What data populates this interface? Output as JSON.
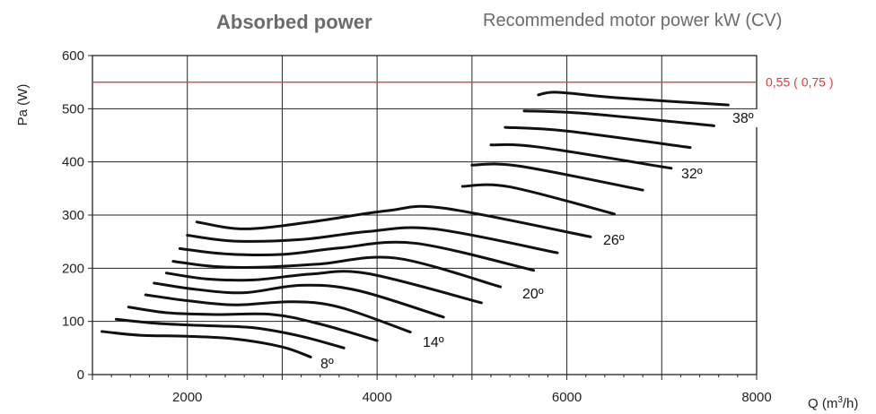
{
  "title": "Absorbed power",
  "subtitle": "Recommended motor power kW (CV)",
  "chart_data": {
    "type": "line",
    "title": "Absorbed power",
    "xlabel": "Q (m3/h)",
    "ylabel": "Pa (W)",
    "xlim": [
      1000,
      8000
    ],
    "ylim": [
      0,
      600
    ],
    "xticks": [
      2000,
      4000,
      6000,
      8000
    ],
    "yticks": [
      0,
      100,
      200,
      300,
      400,
      500,
      600
    ],
    "grid": true,
    "reference_line": {
      "value": 550,
      "label": "0,55 ( 0,75 )",
      "color": "#e23b3b"
    },
    "series": [
      {
        "name": "8º",
        "points": [
          [
            1100,
            81
          ],
          [
            1500,
            74
          ],
          [
            2000,
            72
          ],
          [
            2500,
            67
          ],
          [
            3000,
            52
          ],
          [
            3300,
            33
          ]
        ]
      },
      {
        "name": "",
        "points": [
          [
            1250,
            104
          ],
          [
            1700,
            96
          ],
          [
            2200,
            92
          ],
          [
            2700,
            88
          ],
          [
            3200,
            72
          ],
          [
            3650,
            50
          ]
        ]
      },
      {
        "name": "",
        "points": [
          [
            1380,
            127
          ],
          [
            1800,
            116
          ],
          [
            2300,
            113
          ],
          [
            2900,
            113
          ],
          [
            3400,
            95
          ],
          [
            4000,
            64
          ]
        ]
      },
      {
        "name": "14º",
        "points": [
          [
            1560,
            150
          ],
          [
            2000,
            139
          ],
          [
            2500,
            131
          ],
          [
            3100,
            137
          ],
          [
            3600,
            127
          ],
          [
            4350,
            80
          ]
        ]
      },
      {
        "name": "",
        "points": [
          [
            1650,
            172
          ],
          [
            2100,
            160
          ],
          [
            2600,
            154
          ],
          [
            3200,
            168
          ],
          [
            3800,
            158
          ],
          [
            4700,
            108
          ]
        ]
      },
      {
        "name": "",
        "points": [
          [
            1780,
            191
          ],
          [
            2200,
            180
          ],
          [
            2700,
            178
          ],
          [
            3300,
            189
          ],
          [
            3900,
            190
          ],
          [
            5100,
            135
          ]
        ]
      },
      {
        "name": "20º",
        "points": [
          [
            1850,
            213
          ],
          [
            2300,
            203
          ],
          [
            2800,
            202
          ],
          [
            3400,
            208
          ],
          [
            4200,
            219
          ],
          [
            5300,
            165
          ]
        ]
      },
      {
        "name": "",
        "points": [
          [
            1920,
            237
          ],
          [
            2400,
            227
          ],
          [
            3000,
            226
          ],
          [
            3600,
            238
          ],
          [
            4400,
            247
          ],
          [
            5650,
            196
          ]
        ]
      },
      {
        "name": "",
        "points": [
          [
            2000,
            262
          ],
          [
            2500,
            251
          ],
          [
            3200,
            254
          ],
          [
            3900,
            269
          ],
          [
            4600,
            274
          ],
          [
            5900,
            229
          ]
        ]
      },
      {
        "name": "26º",
        "points": [
          [
            2100,
            287
          ],
          [
            2600,
            274
          ],
          [
            3300,
            287
          ],
          [
            4100,
            308
          ],
          [
            4700,
            313
          ],
          [
            6250,
            259
          ]
        ]
      },
      {
        "name": "",
        "points": [
          [
            4900,
            354
          ],
          [
            5400,
            353
          ],
          [
            6500,
            302
          ]
        ]
      },
      {
        "name": "",
        "points": [
          [
            5000,
            394
          ],
          [
            5500,
            392
          ],
          [
            6800,
            347
          ]
        ]
      },
      {
        "name": "32º",
        "points": [
          [
            5200,
            432
          ],
          [
            5700,
            428
          ],
          [
            7100,
            388
          ]
        ]
      },
      {
        "name": "",
        "points": [
          [
            5350,
            465
          ],
          [
            6000,
            458
          ],
          [
            7300,
            427
          ]
        ]
      },
      {
        "name": "",
        "points": [
          [
            5550,
            496
          ],
          [
            6200,
            491
          ],
          [
            7550,
            468
          ]
        ]
      },
      {
        "name": "38º",
        "points": [
          [
            5700,
            526
          ],
          [
            5900,
            531
          ],
          [
            6500,
            521
          ],
          [
            7700,
            507
          ]
        ]
      }
    ]
  }
}
